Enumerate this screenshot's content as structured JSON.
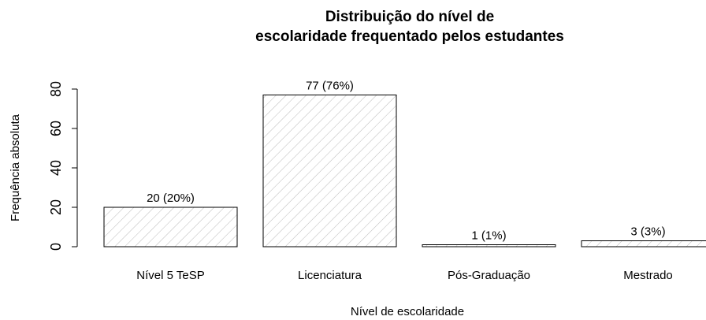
{
  "chart_data": {
    "type": "bar",
    "title": [
      "Distribuição do nível de",
      "escolaridade frequentado pelos estudantes"
    ],
    "xlabel": "Nível de escolaridade",
    "ylabel": "Frequência absoluta",
    "categories": [
      "Nível 5 TeSP",
      "Licenciatura",
      "Pós-Graduação",
      "Mestrado"
    ],
    "values": [
      20,
      77,
      1,
      3
    ],
    "value_labels": [
      "20 (20%)",
      "77 (76%)",
      "1 (1%)",
      "3 (3%)"
    ],
    "color": "#bbbbbb",
    "ylim": [
      0,
      80
    ],
    "yticks": [
      0,
      20,
      40,
      60,
      80
    ]
  }
}
